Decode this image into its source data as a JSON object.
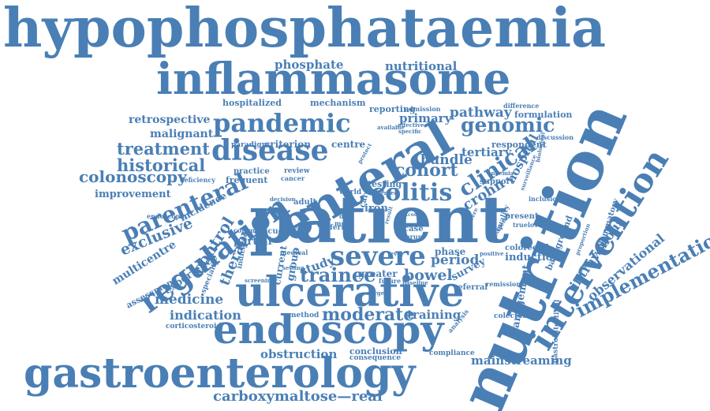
{
  "colors": {
    "word": "#4a7fb5",
    "background": "#ffffff"
  },
  "words": [
    {
      "text": "hypophosphataemia"
    },
    {
      "text": "inflammasome"
    },
    {
      "text": "phosphate"
    },
    {
      "text": "nutritional"
    },
    {
      "text": "nutrition"
    },
    {
      "text": "pandemic"
    },
    {
      "text": "genomic"
    },
    {
      "text": "disease"
    },
    {
      "text": "enteral"
    },
    {
      "text": "patient"
    },
    {
      "text": "regulation"
    },
    {
      "text": "intervention"
    },
    {
      "text": "ulcerative"
    },
    {
      "text": "endoscopy"
    },
    {
      "text": "gastroenterology"
    },
    {
      "text": "severe"
    },
    {
      "text": "colitis"
    },
    {
      "text": "implementation"
    },
    {
      "text": "parenteral"
    },
    {
      "text": "treatment"
    },
    {
      "text": "historical"
    },
    {
      "text": "colonoscopy"
    },
    {
      "text": "retrospective"
    },
    {
      "text": "malignant"
    },
    {
      "text": "hospitalized"
    },
    {
      "text": "mechanism"
    },
    {
      "text": "reporting"
    },
    {
      "text": "admission"
    },
    {
      "text": "primary"
    },
    {
      "text": "pathway"
    },
    {
      "text": "formulation"
    },
    {
      "text": "difference"
    },
    {
      "text": "respondent"
    },
    {
      "text": "discussion"
    },
    {
      "text": "tertiary"
    },
    {
      "text": "criterion"
    },
    {
      "text": "centre"
    },
    {
      "text": "paradigm"
    },
    {
      "text": "cohort"
    },
    {
      "text": "bundle"
    },
    {
      "text": "clinical"
    },
    {
      "text": "hospital"
    },
    {
      "text": "crohn"
    },
    {
      "text": "support"
    },
    {
      "text": "testing"
    },
    {
      "text": "practice"
    },
    {
      "text": "frequent"
    },
    {
      "text": "review"
    },
    {
      "text": "cancer"
    },
    {
      "text": "deficiency"
    },
    {
      "text": "improvement"
    },
    {
      "text": "incidence"
    },
    {
      "text": "endoscopic"
    },
    {
      "text": "exclusive"
    },
    {
      "text": "multicentre"
    },
    {
      "text": "control"
    },
    {
      "text": "experience"
    },
    {
      "text": "therapy"
    },
    {
      "text": "partial"
    },
    {
      "text": "indicated"
    },
    {
      "text": "current"
    },
    {
      "text": "group"
    },
    {
      "text": "study"
    },
    {
      "text": "trainee"
    },
    {
      "text": "greater"
    },
    {
      "text": "bowel"
    },
    {
      "text": "period"
    },
    {
      "text": "phase"
    },
    {
      "text": "survey"
    },
    {
      "text": "referral"
    },
    {
      "text": "induction"
    },
    {
      "text": "colorectal"
    },
    {
      "text": "management"
    },
    {
      "text": "background"
    },
    {
      "text": "intravenous"
    },
    {
      "text": "observational"
    },
    {
      "text": "inflammatory"
    },
    {
      "text": "present"
    },
    {
      "text": "quality"
    },
    {
      "text": "iron"
    },
    {
      "text": "ferric"
    },
    {
      "text": "case"
    },
    {
      "text": "serum"
    },
    {
      "text": "medicine"
    },
    {
      "text": "assessment"
    },
    {
      "text": "specialty"
    },
    {
      "text": "indication"
    },
    {
      "text": "moderate"
    },
    {
      "text": "training"
    },
    {
      "text": "method"
    },
    {
      "text": "corticosteroid"
    },
    {
      "text": "obstruction"
    },
    {
      "text": "conclusion"
    },
    {
      "text": "consequence"
    },
    {
      "text": "compliance"
    },
    {
      "text": "mainstreaming"
    },
    {
      "text": "gastrointestinal"
    },
    {
      "text": "colectomy"
    },
    {
      "text": "remission"
    },
    {
      "text": "carboxymaltose—real"
    },
    {
      "text": "screening"
    },
    {
      "text": "future"
    },
    {
      "text": "surgery"
    },
    {
      "text": "analysis"
    },
    {
      "text": "common"
    },
    {
      "text": "rescue"
    },
    {
      "text": "adult"
    },
    {
      "text": "world"
    },
    {
      "text": "day"
    },
    {
      "text": "most"
    },
    {
      "text": "care"
    },
    {
      "text": "setting"
    },
    {
      "text": "medical"
    },
    {
      "text": "anaemia"
    },
    {
      "text": "inclusion"
    },
    {
      "text": "truelove"
    },
    {
      "text": "positive"
    },
    {
      "text": "protect"
    },
    {
      "text": "available"
    },
    {
      "text": "effective"
    },
    {
      "text": "specific"
    },
    {
      "text": "biological"
    },
    {
      "text": "surveillance"
    },
    {
      "text": "baseline"
    },
    {
      "text": "proportion"
    },
    {
      "text": "evidence"
    },
    {
      "text": "decision"
    },
    {
      "text": "critical"
    },
    {
      "text": "center"
    },
    {
      "text": "outcome"
    },
    {
      "text": "result"
    },
    {
      "text": "severe"
    },
    {
      "text": "level"
    }
  ]
}
